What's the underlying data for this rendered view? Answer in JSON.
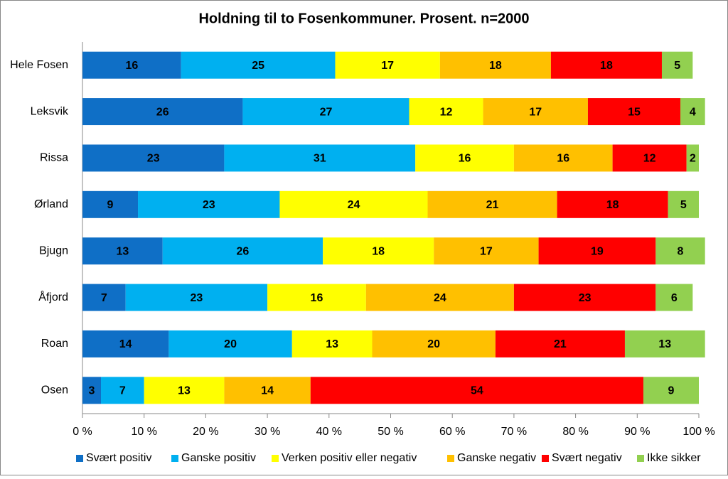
{
  "chart_data": {
    "type": "stacked_bar_horizontal",
    "title": "Holdning til to Fosenkommuner. Prosent. n=2000",
    "categories": [
      "Hele Fosen",
      "Leksvik",
      "Rissa",
      "Ørland",
      "Bjugn",
      "Åfjord",
      "Roan",
      "Osen"
    ],
    "series": [
      {
        "name": "Svært positiv",
        "color": "#0f6fc6",
        "values": [
          16,
          26,
          23,
          9,
          13,
          7,
          14,
          3
        ]
      },
      {
        "name": "Ganske positiv",
        "color": "#00b0f0",
        "values": [
          25,
          27,
          31,
          23,
          26,
          23,
          20,
          7
        ]
      },
      {
        "name": "Verken positiv eller negativ",
        "color": "#ffff00",
        "values": [
          17,
          12,
          16,
          24,
          18,
          16,
          13,
          13
        ]
      },
      {
        "name": "Ganske negativ",
        "color": "#ffc000",
        "values": [
          18,
          17,
          16,
          21,
          17,
          24,
          20,
          14
        ]
      },
      {
        "name": "Svært negativ",
        "color": "#ff0000",
        "values": [
          18,
          15,
          12,
          18,
          19,
          23,
          21,
          54
        ]
      },
      {
        "name": "Ikke sikker",
        "color": "#92d050",
        "values": [
          5,
          4,
          2,
          5,
          8,
          6,
          13,
          9
        ]
      }
    ],
    "xlim": [
      0,
      100
    ],
    "xticks": [
      {
        "value": 0,
        "label": "0 %"
      },
      {
        "value": 10,
        "label": "10 %"
      },
      {
        "value": 20,
        "label": "20 %"
      },
      {
        "value": 30,
        "label": "30 %"
      },
      {
        "value": 40,
        "label": "40 %"
      },
      {
        "value": 50,
        "label": "50 %"
      },
      {
        "value": 60,
        "label": "60 %"
      },
      {
        "value": 70,
        "label": "70 %"
      },
      {
        "value": 80,
        "label": "80 %"
      },
      {
        "value": 90,
        "label": "90 %"
      },
      {
        "value": 100,
        "label": "100 %"
      }
    ],
    "grid": false,
    "legend": "bottom"
  }
}
